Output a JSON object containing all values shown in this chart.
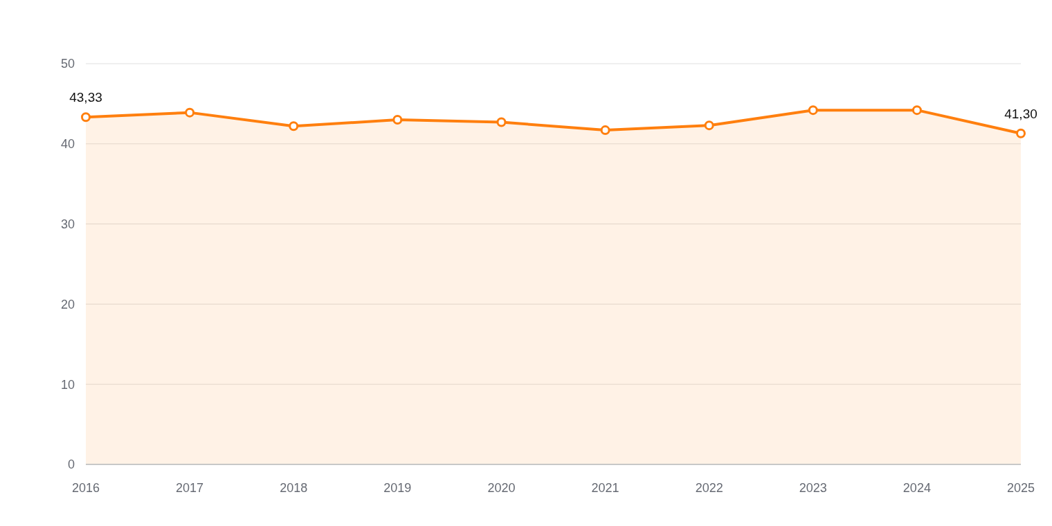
{
  "chart_data": {
    "type": "area",
    "categories": [
      "2016",
      "2017",
      "2018",
      "2019",
      "2020",
      "2021",
      "2022",
      "2023",
      "2024",
      "2025"
    ],
    "series": [
      {
        "color": "#ff7f0e",
        "values": [
          43.33,
          43.9,
          42.2,
          43.0,
          42.7,
          41.7,
          42.3,
          44.2,
          44.2,
          41.3
        ],
        "value_labels": [
          "43,33",
          null,
          null,
          null,
          null,
          null,
          null,
          null,
          null,
          "41,30"
        ]
      }
    ],
    "ylim": [
      0,
      50
    ],
    "yticks": [
      0,
      10,
      20,
      30,
      40,
      50
    ],
    "grid": "y",
    "marker": "circle",
    "line_style": "solid"
  }
}
